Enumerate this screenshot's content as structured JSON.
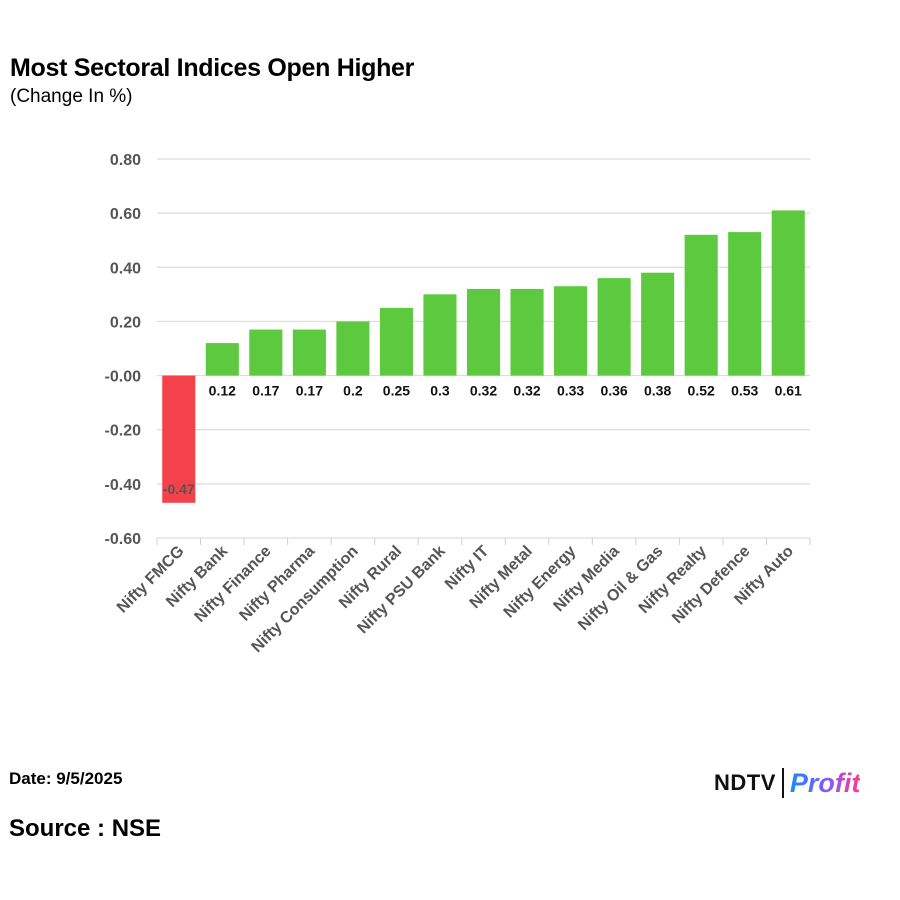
{
  "header": {
    "title": "Most Sectoral Indices Open Higher",
    "subtitle": "(Change In %)"
  },
  "footer": {
    "date": "Date: 9/5/2025",
    "source": "Source : NSE",
    "logo_left": "NDTV",
    "logo_right": "Profit"
  },
  "colors": {
    "positive": "#5cc93e",
    "negative": "#f4424b",
    "grid": "#dcdcdc",
    "axis_text": "#555555"
  },
  "chart_data": {
    "type": "bar",
    "title": "Most Sectoral Indices Open Higher",
    "subtitle": "(Change In %)",
    "xlabel": "",
    "ylabel": "",
    "ylim": [
      -0.6,
      0.8
    ],
    "yticks": [
      0.8,
      0.6,
      0.4,
      0.2,
      0.0,
      -0.2,
      -0.4,
      -0.6
    ],
    "ytick_labels": [
      "0.80",
      "0.60",
      "0.40",
      "0.20",
      "-0.00",
      "-0.20",
      "-0.40",
      "-0.60"
    ],
    "grid": true,
    "categories": [
      "Nifty FMCG",
      "Nifty Bank",
      "Nifty Finance",
      "Nifty Pharma",
      "Nifty Consumption",
      "Nifty Rural",
      "Nifty PSU Bank",
      "Nifty IT",
      "Nifty Metal",
      "Nifty Energy",
      "Nifty Media",
      "Nifty Oil & Gas",
      "Nifty Realty",
      "Nifty Defence",
      "Nifty Auto"
    ],
    "values": [
      -0.47,
      0.12,
      0.17,
      0.17,
      0.2,
      0.25,
      0.3,
      0.32,
      0.32,
      0.33,
      0.36,
      0.38,
      0.52,
      0.53,
      0.61
    ],
    "value_labels": [
      "-0.47",
      "0.12",
      "0.17",
      "0.17",
      "0.2",
      "0.25",
      "0.3",
      "0.32",
      "0.32",
      "0.33",
      "0.36",
      "0.38",
      "0.52",
      "0.53",
      "0.61"
    ]
  }
}
